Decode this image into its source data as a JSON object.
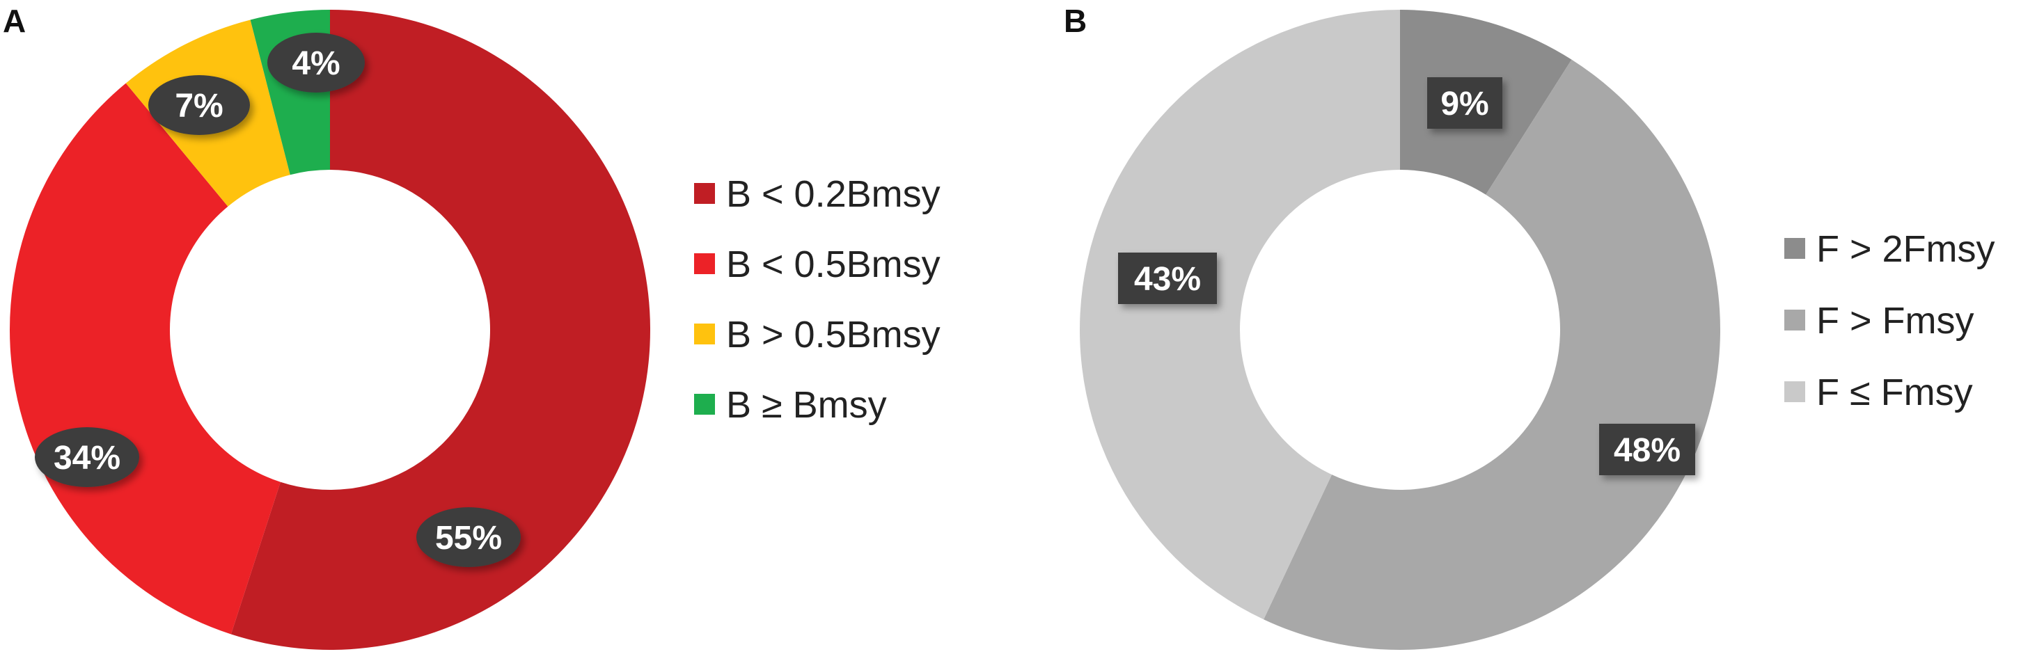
{
  "panels": [
    {
      "letter": "A"
    },
    {
      "letter": "B"
    }
  ],
  "chart_data": [
    {
      "type": "pie",
      "style": "donut",
      "label_shape": "ellipse",
      "categories": [
        "B < 0.2Bmsy",
        "B < 0.5Bmsy",
        "B > 0.5Bmsy",
        "B ≥ Bmsy"
      ],
      "values": [
        55,
        34,
        7,
        4
      ],
      "value_labels": [
        "55%",
        "34%",
        "7%",
        "4%"
      ],
      "colors": [
        "#C01E24",
        "#EC2227",
        "#FFC20E",
        "#1EAE4E"
      ],
      "legend_position": "right"
    },
    {
      "type": "pie",
      "style": "donut",
      "label_shape": "rectangle",
      "categories": [
        "F > 2Fmsy",
        "F > Fmsy",
        "F ≤ Fmsy"
      ],
      "values": [
        9,
        48,
        43
      ],
      "value_labels": [
        "9%",
        "48%",
        "43%"
      ],
      "colors": [
        "#8C8C8C",
        "#A8A8A8",
        "#C9C9C9"
      ],
      "legend_position": "right"
    }
  ]
}
